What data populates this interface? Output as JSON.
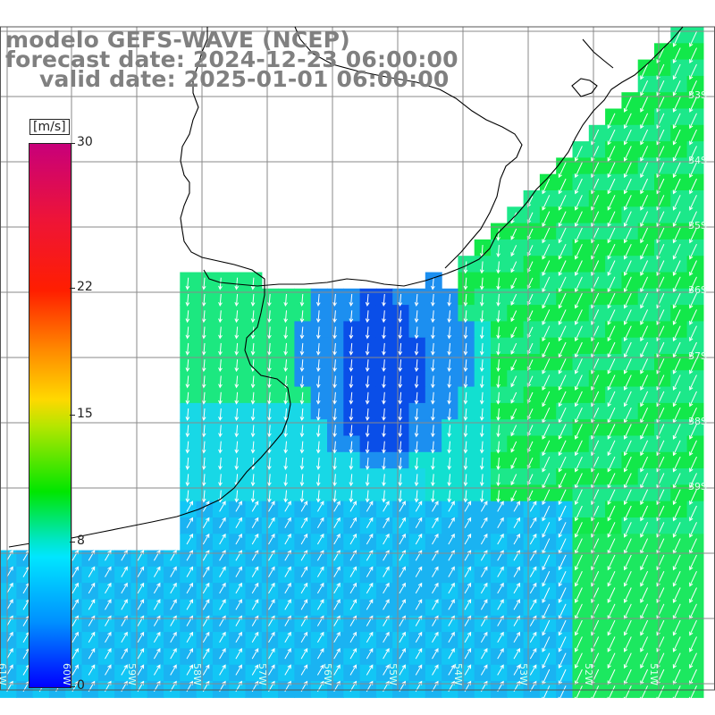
{
  "header": {
    "title": "modelo GEFS-WAVE (NCEP)",
    "forecast": "forecast date: 2024-12-23 06:00:00",
    "valid": "valid date: 2025-01-01 06:00:00"
  },
  "colorbar": {
    "unit": "[m/s]",
    "min": 0,
    "max": 30,
    "ticks": [
      {
        "label": "30",
        "value": 30
      },
      {
        "label": "22",
        "value": 22
      },
      {
        "label": "15",
        "value": 15
      },
      {
        "label": "8",
        "value": 8
      },
      {
        "label": "0",
        "value": 0
      }
    ]
  },
  "map": {
    "lat_labels": [
      "33S",
      "34S",
      "35S",
      "36S",
      "37S",
      "38S",
      "39S"
    ],
    "lon_labels": [
      "61W",
      "60W",
      "59W",
      "58W",
      "57W",
      "56W",
      "55W",
      "54W",
      "53W",
      "52W",
      "51W"
    ],
    "land_color": "#ffffff",
    "grid_color": "#8a8a8a",
    "coast_color": "#000000",
    "arrow_color": "#ffffff"
  }
}
